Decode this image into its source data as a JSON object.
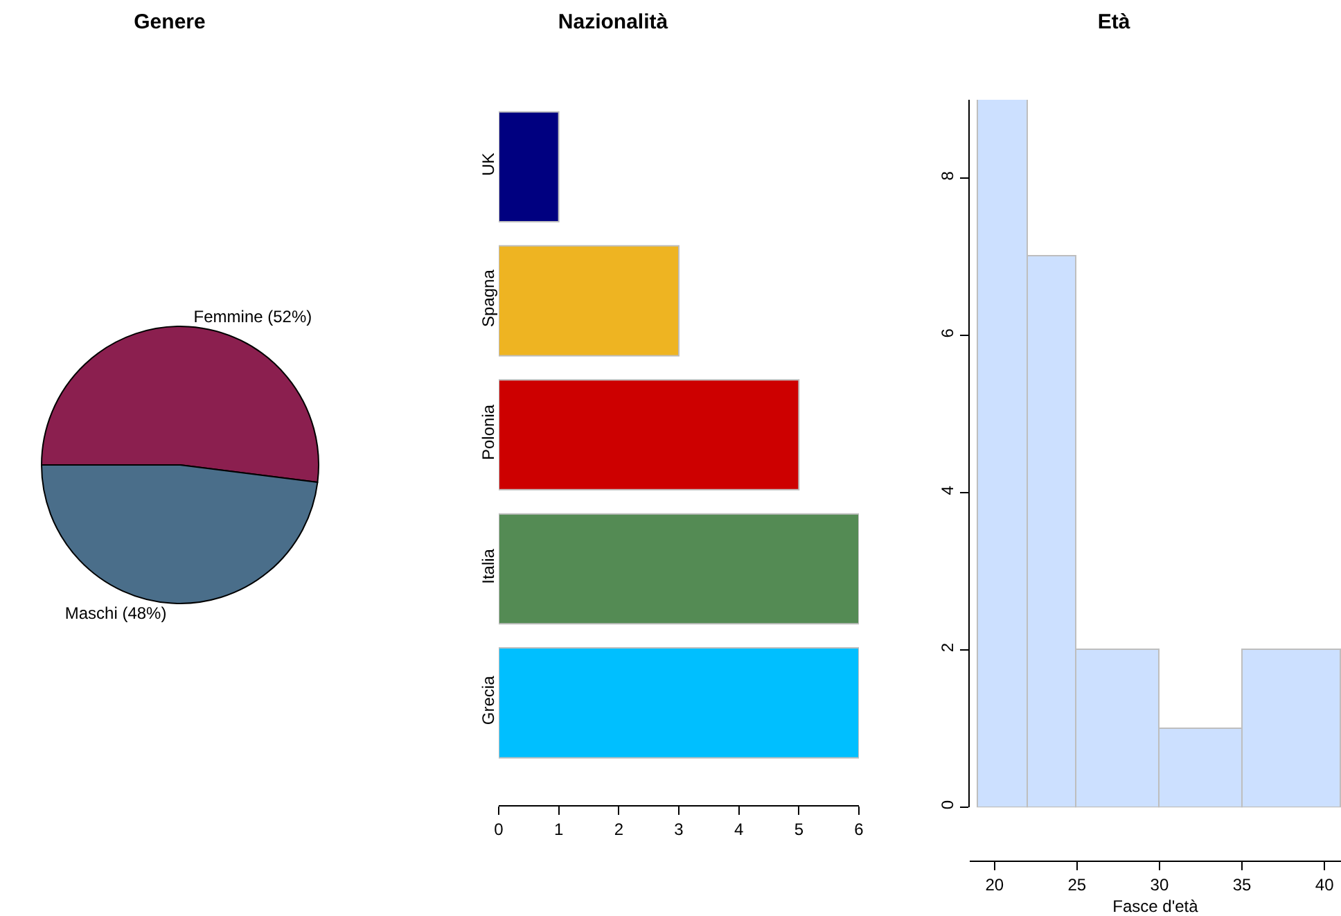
{
  "chart_data": [
    {
      "type": "pie",
      "title": "Genere",
      "categories": [
        "Femmine (52%)",
        "Maschi (48%)"
      ],
      "values": [
        52,
        48
      ],
      "colors": [
        "#8b1f4f",
        "#4a6e8a"
      ]
    },
    {
      "type": "bar",
      "title": "Nazionalità",
      "orientation": "horizontal",
      "categories": [
        "UK",
        "Spagna",
        "Polonia",
        "Italia",
        "Grecia"
      ],
      "values": [
        1,
        3,
        5,
        6,
        6
      ],
      "colors": [
        "#000080",
        "#eeb422",
        "#cd0000",
        "#548b54",
        "#00bfff"
      ],
      "xlim": [
        0,
        6
      ],
      "xticks": [
        0,
        1,
        2,
        3,
        4,
        5,
        6
      ]
    },
    {
      "type": "histogram",
      "title": "Età",
      "xlabel": "Fasce d'età",
      "bins": [
        19,
        22,
        25,
        30,
        35,
        41
      ],
      "values": [
        9,
        7,
        2,
        1,
        2
      ],
      "color": "#cce0ff",
      "xlim": [
        18.5,
        41
      ],
      "xticks": [
        20,
        25,
        30,
        35,
        40
      ],
      "ylim": [
        0,
        9
      ],
      "yticks": [
        0,
        2,
        4,
        6,
        8
      ]
    }
  ]
}
